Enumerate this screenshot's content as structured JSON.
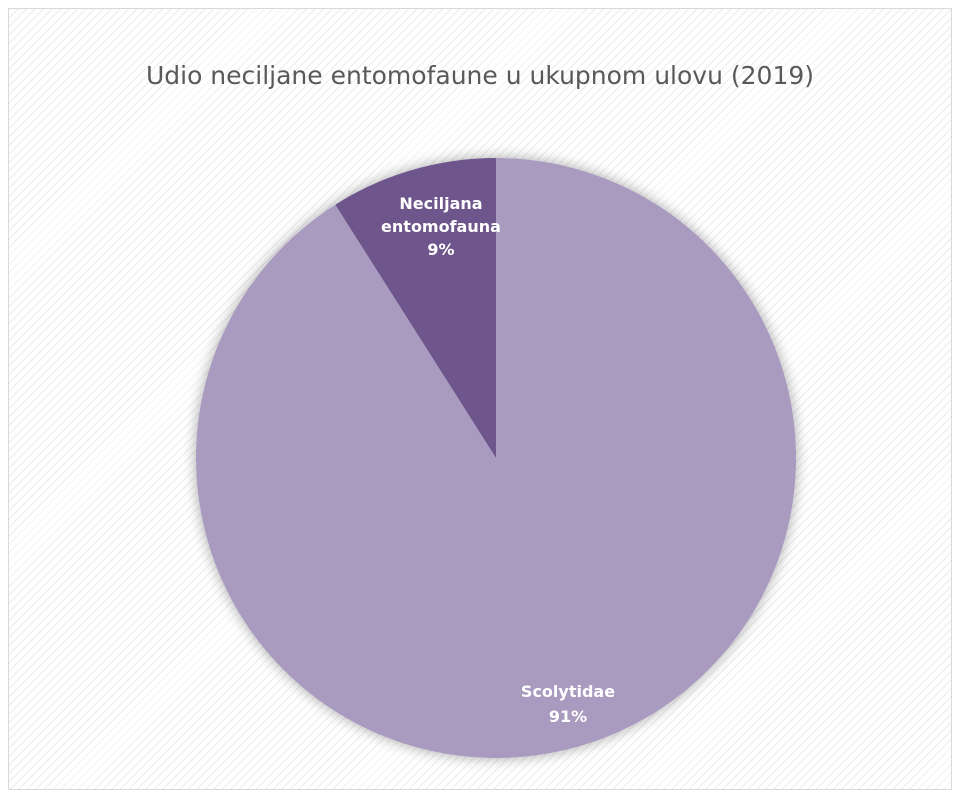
{
  "chart_data": {
    "type": "pie",
    "title": "Udio neciljane entomofaune u ukupnom ulovu (2019)",
    "slices": [
      {
        "name": "Neciljana entomofauna",
        "label_lines": [
          "Neciljana",
          "entomofauna",
          "9%"
        ],
        "value": 9,
        "color": "#6e568c"
      },
      {
        "name": "Scolytidae",
        "label_lines": [
          "Scolytidae",
          "91%"
        ],
        "value": 91,
        "color": "#a89bbf"
      }
    ]
  }
}
